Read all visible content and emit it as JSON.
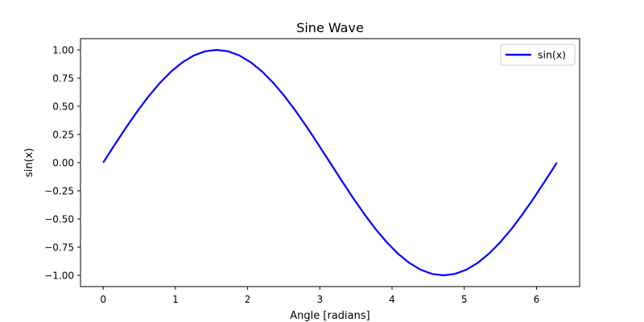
{
  "chart_data": {
    "type": "line",
    "title": "Sine Wave",
    "xlabel": "Angle [radians]",
    "ylabel": "sin(x)",
    "xlim": [
      -0.3142,
      6.5973
    ],
    "ylim": [
      -1.1,
      1.1
    ],
    "xticks": [
      0,
      1,
      2,
      3,
      4,
      5,
      6
    ],
    "xtick_labels": [
      "0",
      "1",
      "2",
      "3",
      "4",
      "5",
      "6"
    ],
    "yticks": [
      -1.0,
      -0.75,
      -0.5,
      -0.25,
      0.0,
      0.25,
      0.5,
      0.75,
      1.0
    ],
    "ytick_labels": [
      "−1.00",
      "−0.75",
      "−0.50",
      "−0.25",
      "0.00",
      "0.25",
      "0.50",
      "0.75",
      "1.00"
    ],
    "grid": false,
    "legend": {
      "position": "top-right"
    },
    "series": [
      {
        "name": "sin(x)",
        "color": "#0000ff",
        "x": [
          0.0,
          0.1571,
          0.3142,
          0.4712,
          0.6283,
          0.7854,
          0.9425,
          1.0996,
          1.2566,
          1.4137,
          1.5708,
          1.7279,
          1.885,
          2.042,
          2.1991,
          2.3562,
          2.5133,
          2.6704,
          2.8274,
          2.9845,
          3.1416,
          3.2987,
          3.4558,
          3.6128,
          3.7699,
          3.927,
          4.0841,
          4.2412,
          4.3982,
          4.5553,
          4.7124,
          4.8695,
          5.0265,
          5.1836,
          5.3407,
          5.4978,
          5.6549,
          5.8119,
          5.969,
          6.1261,
          6.2832
        ],
        "y": [
          0.0,
          0.1564,
          0.309,
          0.454,
          0.5878,
          0.7071,
          0.809,
          0.891,
          0.9511,
          0.9877,
          1.0,
          0.9877,
          0.9511,
          0.891,
          0.809,
          0.7071,
          0.5878,
          0.454,
          0.309,
          0.1564,
          0.0,
          -0.1564,
          -0.309,
          -0.454,
          -0.5878,
          -0.7071,
          -0.809,
          -0.891,
          -0.9511,
          -0.9877,
          -1.0,
          -0.9877,
          -0.9511,
          -0.891,
          -0.809,
          -0.7071,
          -0.5878,
          -0.454,
          -0.309,
          -0.1564,
          0.0
        ]
      }
    ]
  }
}
